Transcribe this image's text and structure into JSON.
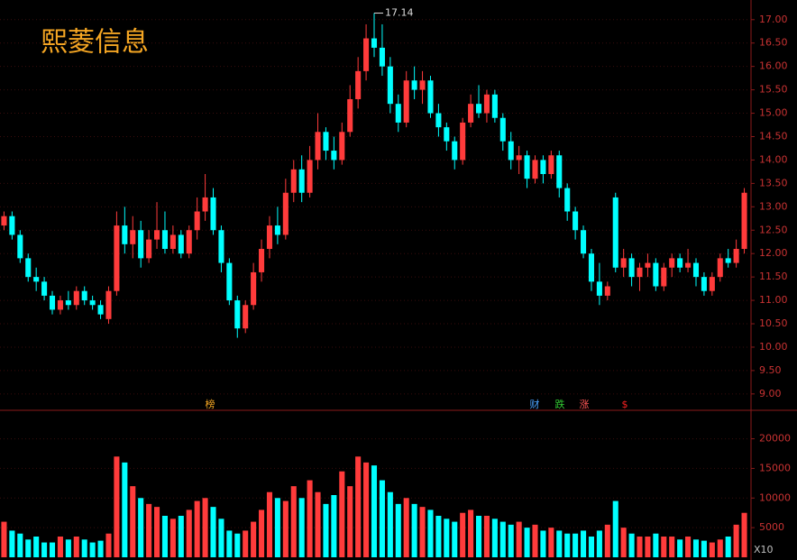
{
  "chart_data": {
    "type": "candlestick",
    "title": "熙菱信息",
    "up_color": "#ff3b3b",
    "down_color": "#00ffff",
    "candles": [
      [
        12.6,
        12.9,
        12.5,
        12.8
      ],
      [
        12.8,
        12.9,
        12.3,
        12.4
      ],
      [
        12.4,
        12.5,
        11.8,
        11.9
      ],
      [
        11.9,
        12.0,
        11.4,
        11.5
      ],
      [
        11.5,
        11.7,
        11.2,
        11.4
      ],
      [
        11.4,
        11.5,
        11.0,
        11.1
      ],
      [
        11.1,
        11.2,
        10.7,
        10.8
      ],
      [
        10.8,
        11.1,
        10.7,
        11.0
      ],
      [
        11.0,
        11.2,
        10.8,
        10.9
      ],
      [
        10.9,
        11.3,
        10.8,
        11.2
      ],
      [
        11.2,
        11.3,
        10.9,
        11.0
      ],
      [
        11.0,
        11.1,
        10.8,
        10.9
      ],
      [
        10.9,
        11.0,
        10.6,
        10.7
      ],
      [
        10.6,
        11.3,
        10.5,
        11.2
      ],
      [
        11.2,
        12.9,
        11.1,
        12.6
      ],
      [
        12.6,
        13.0,
        12.0,
        12.2
      ],
      [
        12.2,
        12.8,
        11.9,
        12.5
      ],
      [
        12.5,
        12.7,
        11.7,
        11.9
      ],
      [
        11.9,
        12.5,
        11.8,
        12.3
      ],
      [
        12.3,
        13.1,
        12.1,
        12.5
      ],
      [
        12.5,
        12.9,
        12.0,
        12.1
      ],
      [
        12.1,
        12.6,
        12.0,
        12.4
      ],
      [
        12.4,
        12.5,
        11.9,
        12.0
      ],
      [
        12.0,
        12.6,
        11.9,
        12.5
      ],
      [
        12.5,
        13.2,
        12.3,
        12.9
      ],
      [
        12.9,
        13.7,
        12.7,
        13.2
      ],
      [
        13.2,
        13.4,
        12.4,
        12.5
      ],
      [
        12.5,
        12.6,
        11.6,
        11.8
      ],
      [
        11.8,
        11.9,
        10.9,
        11.0
      ],
      [
        11.0,
        11.1,
        10.2,
        10.4
      ],
      [
        10.4,
        11.0,
        10.3,
        10.9
      ],
      [
        10.9,
        11.8,
        10.8,
        11.6
      ],
      [
        11.6,
        12.3,
        11.4,
        12.1
      ],
      [
        12.1,
        12.8,
        11.9,
        12.6
      ],
      [
        12.6,
        13.0,
        12.2,
        12.4
      ],
      [
        12.4,
        13.6,
        12.3,
        13.3
      ],
      [
        13.3,
        14.0,
        13.1,
        13.8
      ],
      [
        13.8,
        14.1,
        13.1,
        13.3
      ],
      [
        13.3,
        14.3,
        13.2,
        14.0
      ],
      [
        14.0,
        15.0,
        13.8,
        14.6
      ],
      [
        14.6,
        14.7,
        14.0,
        14.2
      ],
      [
        14.2,
        14.5,
        13.8,
        14.0
      ],
      [
        14.0,
        14.8,
        13.9,
        14.6
      ],
      [
        14.6,
        15.6,
        14.5,
        15.3
      ],
      [
        15.3,
        16.2,
        15.1,
        15.9
      ],
      [
        15.9,
        16.9,
        15.7,
        16.6
      ],
      [
        16.6,
        17.14,
        16.2,
        16.4
      ],
      [
        16.4,
        16.9,
        15.8,
        16.0
      ],
      [
        16.0,
        16.2,
        15.0,
        15.2
      ],
      [
        15.2,
        15.4,
        14.6,
        14.8
      ],
      [
        14.8,
        15.9,
        14.7,
        15.7
      ],
      [
        15.7,
        16.0,
        15.3,
        15.5
      ],
      [
        15.5,
        15.9,
        15.2,
        15.7
      ],
      [
        15.7,
        15.8,
        14.9,
        15.0
      ],
      [
        15.0,
        15.2,
        14.5,
        14.7
      ],
      [
        14.7,
        14.8,
        14.2,
        14.4
      ],
      [
        14.4,
        14.5,
        13.8,
        14.0
      ],
      [
        14.0,
        14.9,
        13.9,
        14.8
      ],
      [
        14.8,
        15.4,
        14.7,
        15.2
      ],
      [
        15.2,
        15.6,
        14.9,
        15.0
      ],
      [
        15.0,
        15.5,
        14.8,
        15.4
      ],
      [
        15.4,
        15.5,
        14.8,
        14.9
      ],
      [
        14.9,
        15.0,
        14.2,
        14.4
      ],
      [
        14.4,
        14.6,
        13.8,
        14.0
      ],
      [
        14.0,
        14.3,
        13.7,
        14.1
      ],
      [
        14.1,
        14.2,
        13.4,
        13.6
      ],
      [
        13.6,
        14.1,
        13.5,
        14.0
      ],
      [
        14.0,
        14.1,
        13.5,
        13.7
      ],
      [
        13.7,
        14.2,
        13.6,
        14.1
      ],
      [
        14.1,
        14.2,
        13.2,
        13.4
      ],
      [
        13.4,
        13.5,
        12.7,
        12.9
      ],
      [
        12.9,
        13.0,
        12.3,
        12.5
      ],
      [
        12.5,
        12.6,
        11.9,
        12.0
      ],
      [
        12.0,
        12.1,
        11.2,
        11.4
      ],
      [
        11.4,
        11.8,
        10.9,
        11.1
      ],
      [
        11.1,
        11.4,
        11.0,
        11.3
      ],
      [
        13.2,
        13.3,
        11.6,
        11.7
      ],
      [
        11.7,
        12.1,
        11.5,
        11.9
      ],
      [
        11.9,
        12.0,
        11.3,
        11.5
      ],
      [
        11.5,
        11.8,
        11.2,
        11.7
      ],
      [
        11.7,
        12.0,
        11.5,
        11.8
      ],
      [
        11.8,
        11.9,
        11.2,
        11.3
      ],
      [
        11.3,
        11.8,
        11.2,
        11.7
      ],
      [
        11.7,
        12.0,
        11.5,
        11.9
      ],
      [
        11.9,
        12.0,
        11.6,
        11.7
      ],
      [
        11.7,
        12.1,
        11.6,
        11.8
      ],
      [
        11.8,
        11.9,
        11.3,
        11.5
      ],
      [
        11.5,
        11.6,
        11.1,
        11.2
      ],
      [
        11.2,
        11.6,
        11.1,
        11.5
      ],
      [
        11.5,
        12.0,
        11.4,
        11.9
      ],
      [
        11.9,
        12.1,
        11.7,
        11.8
      ],
      [
        11.8,
        12.3,
        11.7,
        12.1
      ],
      [
        12.1,
        13.4,
        12.0,
        13.3
      ]
    ],
    "volumes": [
      6000,
      4500,
      4000,
      3000,
      3500,
      2500,
      2500,
      3500,
      3000,
      3500,
      3000,
      2500,
      2800,
      4000,
      17000,
      16000,
      12000,
      10000,
      9000,
      8500,
      7000,
      6500,
      7000,
      8000,
      9500,
      10000,
      8500,
      6500,
      4500,
      4000,
      4500,
      6000,
      8000,
      11000,
      10000,
      9500,
      12000,
      10000,
      13000,
      11000,
      9000,
      10500,
      14500,
      12000,
      17000,
      16000,
      15500,
      13000,
      11000,
      9000,
      10000,
      9000,
      8500,
      8000,
      7000,
      6500,
      6000,
      7500,
      8000,
      7000,
      7000,
      6500,
      6000,
      5500,
      6000,
      5000,
      5500,
      4500,
      5000,
      4500,
      4000,
      4000,
      4500,
      3500,
      4500,
      5500,
      9500,
      5000,
      4000,
      3500,
      3500,
      4000,
      3500,
      3500,
      3000,
      3500,
      3000,
      2800,
      2500,
      3000,
      3500,
      5500,
      7500
    ],
    "ylim": [
      8.65,
      17.42
    ],
    "yticks": [
      {
        "value": 9,
        "label": "9.00"
      },
      {
        "value": 9.5,
        "label": "9.50"
      },
      {
        "value": 10,
        "label": "10.00"
      },
      {
        "value": 10.5,
        "label": "10.50"
      },
      {
        "value": 11,
        "label": "11.00"
      },
      {
        "value": 11.5,
        "label": "11.50"
      },
      {
        "value": 12,
        "label": "12.00"
      },
      {
        "value": 12.5,
        "label": "12.50"
      },
      {
        "value": 13,
        "label": "13.00"
      },
      {
        "value": 13.5,
        "label": "13.50"
      },
      {
        "value": 14,
        "label": "14.00"
      },
      {
        "value": 14.5,
        "label": "14.50"
      },
      {
        "value": 15,
        "label": "15.00"
      },
      {
        "value": 15.5,
        "label": "15.50"
      },
      {
        "value": 16,
        "label": "16.00"
      },
      {
        "value": 16.5,
        "label": "16.50"
      },
      {
        "value": 17,
        "label": "17.00"
      }
    ],
    "volume_ylim": [
      0,
      24500
    ],
    "volume_yticks": [
      5000,
      10000,
      15000,
      20000
    ],
    "volume_unit_label": "X10",
    "markers": [
      "榜",
      "财",
      "跌",
      "涨",
      "$"
    ],
    "grid": true
  }
}
